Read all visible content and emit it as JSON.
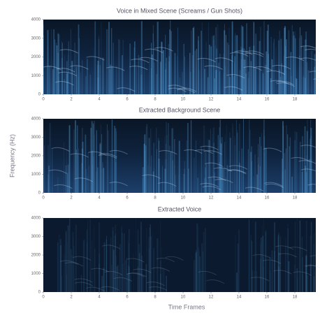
{
  "chart_data": [
    {
      "type": "spectrogram",
      "title": "Voice in Mixed Scene (Screams / Gun Shots)",
      "xlim": [
        0,
        19.5
      ],
      "xticks": [
        0,
        2,
        4,
        6,
        8,
        10,
        12,
        14,
        16,
        18
      ],
      "ylim": [
        0,
        4000
      ],
      "yticks": [
        0,
        1000,
        2000,
        3000,
        4000
      ]
    },
    {
      "type": "spectrogram",
      "title": "Extracted Background Scene",
      "ylabel": "Frequency (Hz)",
      "xlim": [
        0,
        19.5
      ],
      "xticks": [
        0,
        2,
        4,
        6,
        8,
        10,
        12,
        14,
        16,
        18
      ],
      "ylim": [
        0,
        4000
      ],
      "yticks": [
        0,
        1000,
        2000,
        3000,
        4000
      ]
    },
    {
      "type": "spectrogram",
      "title": "Extracted Voice",
      "xlabel": "Time Frames",
      "xlim": [
        0,
        19.5
      ],
      "xticks": [
        0,
        2,
        4,
        6,
        8,
        10,
        12,
        14,
        16,
        18
      ],
      "ylim": [
        0,
        4000
      ],
      "yticks": [
        0,
        1000,
        2000,
        3000,
        4000
      ]
    }
  ]
}
